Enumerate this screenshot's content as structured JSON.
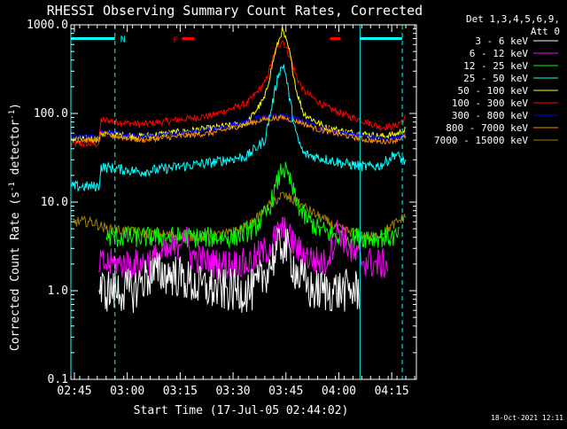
{
  "chart_data": {
    "type": "line",
    "title": "RHESSI Observing Summary Count Rates, Corrected",
    "xlabel": "Start Time (17-Jul-05 02:44:02)",
    "ylabel_main": "Corrected Count Rate (s",
    "ylabel_sup1": "-1",
    "ylabel_mid": " detector",
    "ylabel_sup2": "-1",
    "ylabel_end": ")",
    "xlim": [
      0,
      98
    ],
    "ylim": [
      0.1,
      1000
    ],
    "yscale": "log",
    "xticks": [
      {
        "value": 1,
        "label": "02:45"
      },
      {
        "value": 16,
        "label": "03:00"
      },
      {
        "value": 31,
        "label": "03:15"
      },
      {
        "value": 46,
        "label": "03:30"
      },
      {
        "value": 61,
        "label": "03:45"
      },
      {
        "value": 76,
        "label": "04:00"
      },
      {
        "value": 91,
        "label": "04:15"
      }
    ],
    "yticks": [
      {
        "value": 0.1,
        "label": "0.1"
      },
      {
        "value": 1,
        "label": "1.0"
      },
      {
        "value": 10,
        "label": "10.0"
      },
      {
        "value": 100,
        "label": "100.0"
      },
      {
        "value": 1000,
        "label": "1000.0"
      }
    ],
    "legend": {
      "placement": "right",
      "header": [
        "Det 1,3,4,5,6,9,",
        "Att 0"
      ],
      "entries": [
        {
          "label": "3 - 6 keV",
          "color": "#ffffff"
        },
        {
          "label": "6 - 12 keV",
          "color": "#ff00ff"
        },
        {
          "label": "12 - 25 keV",
          "color": "#00ff00"
        },
        {
          "label": "25 - 50 keV",
          "color": "#00ffff"
        },
        {
          "label": "50 - 100 keV",
          "color": "#ffff00"
        },
        {
          "label": "100 - 300 keV",
          "color": "#ff0000"
        },
        {
          "label": "300 - 800 keV",
          "color": "#0000ff"
        },
        {
          "label": "800 - 7000 keV",
          "color": "#ff8c00"
        },
        {
          "label": "7000 - 15000 keV",
          "color": "#a08000"
        }
      ]
    },
    "annotations": {
      "night_marker": "N",
      "flare_marker": "F",
      "timestamp": "18-Oct-2021 12:11"
    },
    "vertical_markers": [
      {
        "x": 0,
        "style": "solid",
        "color": "#00ffff"
      },
      {
        "x": 12.5,
        "style": "dashed",
        "color": "#00ffff"
      },
      {
        "x": 82,
        "style": "solid",
        "color": "#00ffff"
      },
      {
        "x": 94,
        "style": "dashed",
        "color": "#00ffff"
      }
    ],
    "night_bars": [
      {
        "x0": 0,
        "x1": 12.5,
        "y": 700,
        "color": "#00ffff"
      },
      {
        "x0": 82,
        "x1": 94,
        "y": 700,
        "color": "#00ffff"
      }
    ],
    "flare_bars": [
      {
        "x0": 31.5,
        "x1": 35,
        "y": 700,
        "color": "#ff0000"
      },
      {
        "x0": 73.5,
        "x1": 76.5,
        "y": 700,
        "color": "#ff0000"
      }
    ],
    "series": [
      {
        "name": "100 - 300 keV",
        "color": "#ff0000",
        "noise": 0.04,
        "x": [
          0,
          8,
          8.5,
          20,
          40,
          50,
          55,
          58,
          60,
          62,
          64,
          66,
          72,
          78,
          84,
          88,
          92,
          95
        ],
        "y": [
          45,
          45,
          85,
          75,
          95,
          130,
          220,
          500,
          680,
          450,
          260,
          180,
          120,
          95,
          80,
          70,
          72,
          90
        ]
      },
      {
        "name": "50 - 100 keV",
        "color": "#ffff00",
        "noise": 0.04,
        "x": [
          0,
          8,
          8.5,
          20,
          40,
          50,
          55,
          58,
          60,
          62,
          64,
          66,
          72,
          78,
          84,
          88,
          92,
          95
        ],
        "y": [
          52,
          52,
          60,
          55,
          68,
          78,
          150,
          500,
          880,
          500,
          180,
          100,
          70,
          62,
          58,
          55,
          58,
          65
        ]
      },
      {
        "name": "300 - 800 keV",
        "color": "#0000ff",
        "noise": 0.03,
        "x": [
          0,
          8,
          8.5,
          20,
          40,
          50,
          55,
          60,
          65,
          70,
          78,
          84,
          88,
          92,
          95
        ],
        "y": [
          55,
          55,
          62,
          55,
          65,
          82,
          92,
          95,
          85,
          70,
          60,
          55,
          52,
          53,
          60
        ]
      },
      {
        "name": "800 - 7000 keV",
        "color": "#ff8c00",
        "noise": 0.03,
        "x": [
          0,
          8,
          8.5,
          20,
          40,
          50,
          55,
          60,
          65,
          70,
          78,
          84,
          88,
          92,
          95
        ],
        "y": [
          50,
          50,
          58,
          50,
          60,
          76,
          86,
          90,
          80,
          66,
          56,
          50,
          48,
          50,
          55
        ]
      },
      {
        "name": "25 - 50 keV",
        "color": "#00ffff",
        "noise": 0.06,
        "x": [
          0,
          8,
          8.5,
          20,
          40,
          50,
          55,
          57,
          59,
          60.5,
          62,
          64,
          66,
          70,
          78,
          84,
          88,
          92,
          95
        ],
        "y": [
          15,
          15,
          25,
          22,
          28,
          33,
          50,
          120,
          300,
          350,
          150,
          55,
          35,
          32,
          27,
          25,
          26,
          35,
          28
        ]
      },
      {
        "name": "7000 - 15000 keV",
        "color": "#a08000",
        "noise": 0.06,
        "x": [
          0,
          6,
          10,
          20,
          30,
          38,
          46,
          52,
          56,
          60,
          64,
          70,
          76,
          80,
          86,
          90,
          95
        ],
        "y": [
          6,
          6,
          5,
          4.5,
          4.2,
          4.0,
          4.5,
          6,
          9,
          12,
          10,
          7,
          5,
          4.5,
          4,
          5,
          7
        ]
      },
      {
        "name": "12 - 25 keV",
        "color": "#00ff00",
        "noise": 0.12,
        "x": [
          10,
          30,
          40,
          46,
          52,
          56,
          58,
          60,
          62,
          64,
          66,
          70,
          76,
          80,
          86,
          93
        ],
        "y": [
          4,
          4,
          4,
          4,
          5,
          8,
          14,
          25,
          18,
          10,
          7,
          5,
          4,
          4,
          4,
          4
        ]
      },
      {
        "name": "6 - 12 keV",
        "color": "#ff00ff",
        "noise": 0.18,
        "x": [
          8,
          20,
          30,
          32,
          34,
          40,
          50,
          56,
          58,
          60,
          62,
          64,
          66,
          72,
          76,
          80,
          86,
          90
        ],
        "y": [
          2,
          2,
          3,
          5,
          2.5,
          2,
          2,
          3,
          4,
          5,
          4,
          3,
          2.5,
          2,
          5,
          2.5,
          2,
          2
        ]
      },
      {
        "name": "3 - 6 keV",
        "color": "#ffffff",
        "noise": 0.25,
        "x": [
          8,
          18,
          20,
          24,
          30,
          36,
          44,
          52,
          56,
          58,
          60,
          62,
          64,
          68,
          76,
          82
        ],
        "y": [
          1,
          1,
          1.3,
          1.6,
          1.5,
          1.1,
          1.0,
          1.0,
          1.8,
          2.6,
          3.5,
          2.6,
          1.6,
          1.0,
          1.0,
          1.0
        ]
      }
    ]
  }
}
